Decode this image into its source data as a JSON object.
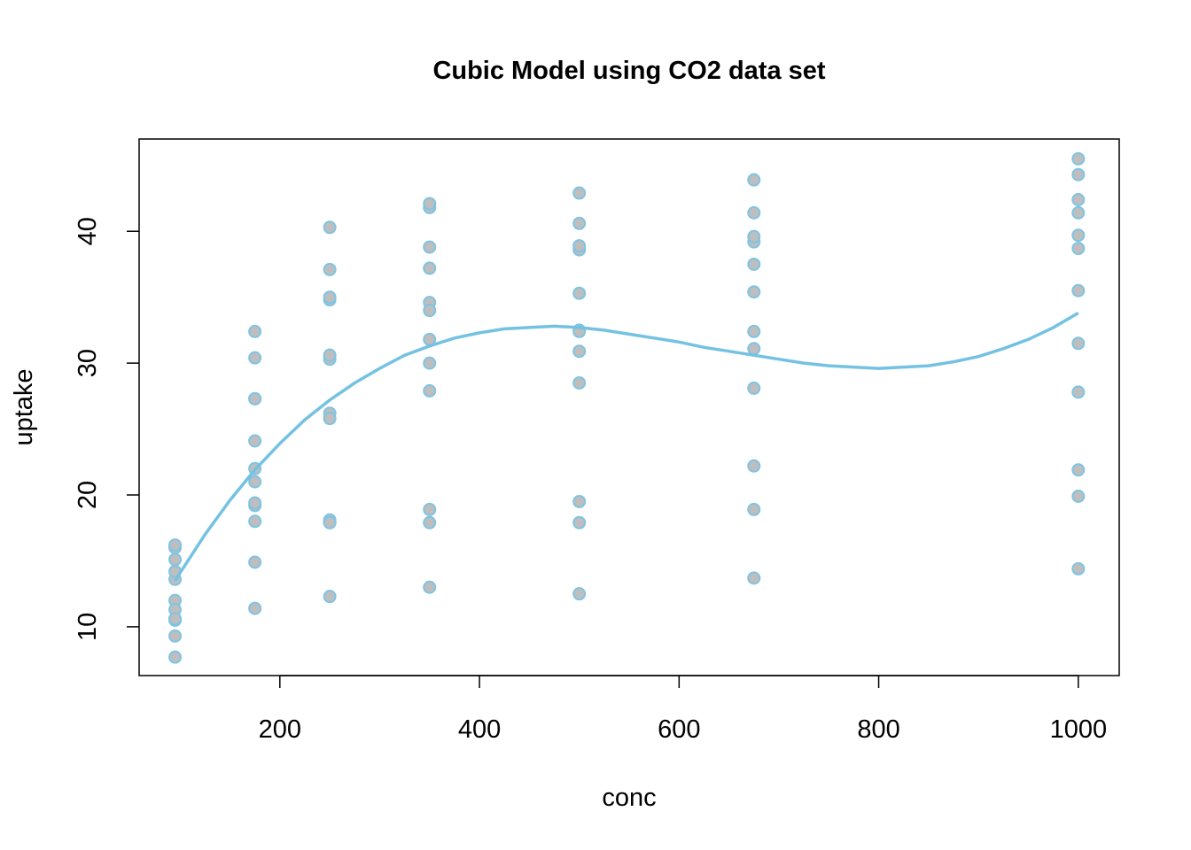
{
  "chart_data": {
    "type": "scatter",
    "title": "Cubic Model using CO2 data set",
    "xlabel": "conc",
    "ylabel": "uptake",
    "xlim": [
      59,
      1041
    ],
    "ylim": [
      6.3,
      47.0
    ],
    "xticks": [
      200,
      400,
      600,
      800,
      1000
    ],
    "yticks": [
      10,
      20,
      30,
      40
    ],
    "grid": false,
    "legend": "none",
    "colors": {
      "point_fill": "#BEBEBE",
      "point_stroke": "#7EC4E4",
      "line": "#74C2E2",
      "frame": "#000000"
    },
    "points": {
      "x": [
        95,
        95,
        95,
        95,
        95,
        95,
        95,
        95,
        95,
        95,
        95,
        95,
        175,
        175,
        175,
        175,
        175,
        175,
        175,
        175,
        175,
        175,
        175,
        175,
        250,
        250,
        250,
        250,
        250,
        250,
        250,
        250,
        250,
        250,
        250,
        250,
        350,
        350,
        350,
        350,
        350,
        350,
        350,
        350,
        350,
        350,
        350,
        350,
        500,
        500,
        500,
        500,
        500,
        500,
        500,
        500,
        500,
        500,
        500,
        500,
        675,
        675,
        675,
        675,
        675,
        675,
        675,
        675,
        675,
        675,
        675,
        675,
        1000,
        1000,
        1000,
        1000,
        1000,
        1000,
        1000,
        1000,
        1000,
        1000,
        1000,
        1000
      ],
      "y": [
        16.0,
        13.6,
        16.2,
        14.2,
        15.1,
        10.6,
        12.0,
        11.3,
        10.5,
        10.6,
        7.7,
        9.3,
        30.4,
        27.3,
        32.4,
        24.1,
        27.3,
        19.2,
        22.0,
        19.4,
        14.9,
        18.0,
        11.4,
        21.0,
        34.8,
        37.1,
        40.3,
        30.3,
        35.0,
        26.2,
        30.6,
        25.8,
        18.1,
        17.9,
        12.3,
        17.9,
        37.2,
        41.8,
        42.1,
        34.6,
        38.8,
        30.0,
        31.8,
        27.9,
        18.9,
        17.9,
        13.0,
        34.0,
        35.3,
        40.6,
        42.9,
        32.5,
        38.6,
        30.9,
        32.4,
        28.5,
        19.5,
        17.9,
        12.5,
        38.9,
        39.2,
        41.4,
        43.9,
        35.4,
        37.5,
        32.4,
        31.1,
        28.1,
        22.2,
        18.9,
        13.7,
        39.6,
        39.7,
        44.3,
        45.5,
        38.7,
        42.4,
        35.5,
        31.5,
        27.8,
        21.9,
        19.9,
        14.4,
        41.4
      ]
    },
    "fit_curve": {
      "model": "uptake ~ poly(conc, 3)",
      "x": [
        95,
        125,
        150,
        175,
        200,
        225,
        250,
        275,
        300,
        325,
        350,
        375,
        400,
        425,
        450,
        475,
        500,
        525,
        550,
        575,
        600,
        625,
        650,
        675,
        700,
        725,
        750,
        775,
        800,
        825,
        850,
        875,
        900,
        925,
        950,
        975,
        1000
      ],
      "y": [
        13.5,
        17.0,
        19.6,
        21.9,
        23.9,
        25.7,
        27.2,
        28.5,
        29.6,
        30.6,
        31.3,
        31.9,
        32.3,
        32.6,
        32.7,
        32.8,
        32.7,
        32.5,
        32.2,
        31.9,
        31.6,
        31.2,
        30.9,
        30.6,
        30.3,
        30.0,
        29.8,
        29.7,
        29.6,
        29.7,
        29.8,
        30.1,
        30.5,
        31.1,
        31.8,
        32.7,
        33.8
      ]
    }
  }
}
